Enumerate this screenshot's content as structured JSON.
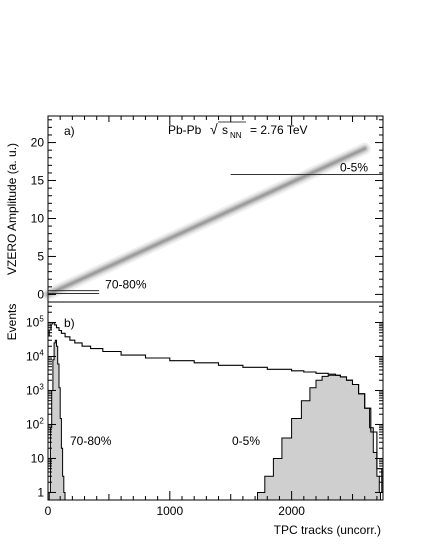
{
  "chart_data": [
    {
      "type": "scatter",
      "panel_label": "a)",
      "header": {
        "system": "Pb-Pb",
        "energy_prefix": "√",
        "energy_symbol": "s",
        "energy_sub": "NN",
        "energy_value": "= 2.76 TeV"
      },
      "ylabel": "VZERO Amplitude (a. u.)",
      "xlim": [
        0,
        2750
      ],
      "ylim": [
        -1,
        23.5
      ],
      "y_ticks": [
        0,
        5,
        10,
        15,
        20
      ],
      "band": {
        "x": [
          0,
          2600
        ],
        "y": [
          0,
          19.2
        ]
      },
      "cuts": [
        {
          "label": "0-5%",
          "x": [
            1500,
            2750
          ],
          "y": 15.8
        },
        {
          "label": "70-80%",
          "x": [
            0,
            420
          ],
          "y": 0.5
        },
        {
          "label": "",
          "x": [
            0,
            420
          ],
          "y": 0.12
        }
      ]
    },
    {
      "type": "line",
      "panel_label": "b)",
      "ylabel": "Events",
      "xlabel": "TPC tracks (uncorr.)",
      "xlim": [
        0,
        2750
      ],
      "y_scale": "log",
      "ylim": [
        0.6,
        400000
      ],
      "x_ticks": [
        0,
        1000,
        2000
      ],
      "y_ticks": [
        {
          "value": 1,
          "base": "1",
          "exp": ""
        },
        {
          "value": 10,
          "base": "10",
          "exp": ""
        },
        {
          "value": 100,
          "base": "10",
          "exp": "2"
        },
        {
          "value": 1000,
          "base": "10",
          "exp": "3"
        },
        {
          "value": 10000,
          "base": "10",
          "exp": "4"
        },
        {
          "value": 100000,
          "base": "10",
          "exp": "5"
        }
      ],
      "series": [
        {
          "style": "line",
          "x": [
            0,
            10,
            25,
            40,
            55,
            70,
            90,
            110,
            140,
            180,
            220,
            280,
            350,
            450,
            600,
            800,
            1000,
            1200,
            1400,
            1600,
            1800,
            2000,
            2100,
            2200,
            2300,
            2360,
            2400,
            2450,
            2500,
            2550,
            2600,
            2650,
            2700,
            2740
          ],
          "y": [
            40000,
            60000,
            90000,
            100000,
            85000,
            70000,
            58000,
            48000,
            38000,
            30000,
            25000,
            20000,
            17000,
            14000,
            11000,
            9000,
            7500,
            6500,
            5500,
            4800,
            4200,
            3800,
            3500,
            3200,
            3000,
            2800,
            2500,
            2000,
            1500,
            800,
            300,
            60,
            5,
            1
          ]
        },
        {
          "style": "filled",
          "label": "70-80%",
          "x": [
            10,
            20,
            30,
            40,
            50,
            60,
            70,
            80,
            90,
            100,
            110,
            120,
            130
          ],
          "y": [
            1,
            80,
            1000,
            8000,
            25000,
            30000,
            20000,
            6000,
            1200,
            150,
            20,
            3,
            1
          ]
        },
        {
          "style": "filled",
          "label": "0-5%",
          "x": [
            1720,
            1780,
            1850,
            1920,
            2000,
            2080,
            2150,
            2200,
            2250,
            2300,
            2350,
            2400,
            2450,
            2500,
            2550,
            2600,
            2640,
            2670,
            2700,
            2720
          ],
          "y": [
            1,
            3,
            10,
            40,
            150,
            500,
            1200,
            2000,
            2600,
            2800,
            2800,
            2500,
            2000,
            1500,
            800,
            300,
            80,
            15,
            3,
            1
          ]
        }
      ]
    }
  ]
}
